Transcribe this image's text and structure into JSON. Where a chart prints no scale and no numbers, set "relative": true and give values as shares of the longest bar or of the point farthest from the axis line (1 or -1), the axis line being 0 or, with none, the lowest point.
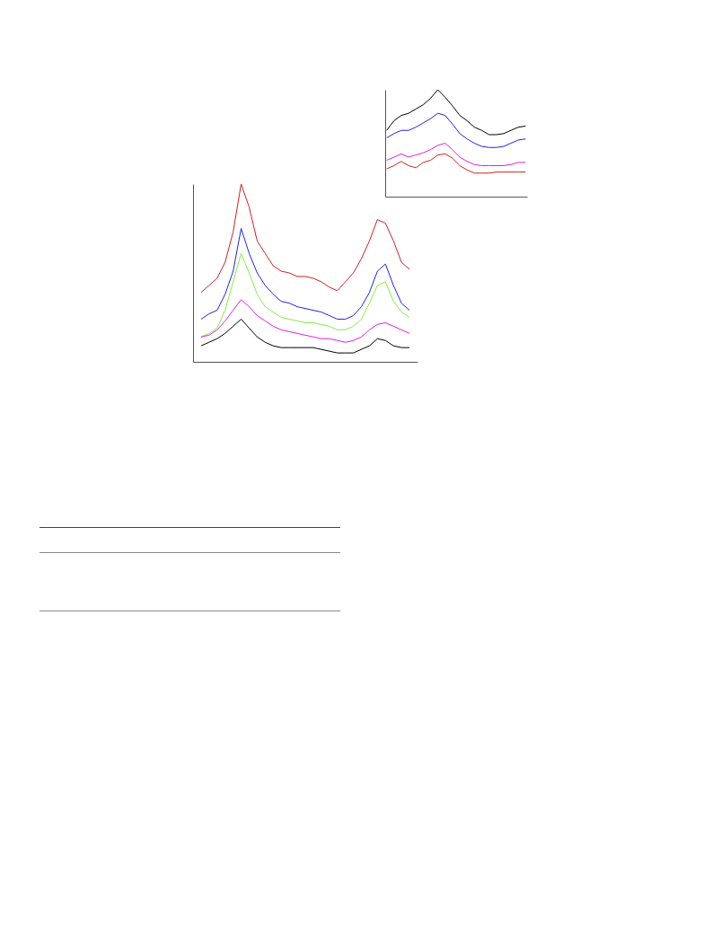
{
  "chart_data": [
    {
      "type": "line",
      "relative": true,
      "categories": [
        null,
        null,
        null,
        null,
        null,
        null,
        null,
        null,
        null,
        null,
        null,
        null,
        null,
        null,
        null,
        null,
        null,
        null,
        null,
        null,
        null,
        null,
        null,
        null,
        null,
        null,
        null
      ],
      "series": [
        {
          "color": "#d02020",
          "values": [
            0.39,
            0.43,
            0.47,
            0.56,
            0.73,
            1.0,
            0.87,
            0.68,
            0.61,
            0.54,
            0.51,
            0.5,
            0.48,
            0.48,
            0.47,
            0.45,
            0.42,
            0.4,
            0.45,
            0.5,
            0.58,
            0.68,
            0.8,
            0.78,
            0.68,
            0.56,
            0.52
          ]
        },
        {
          "color": "#2020f0",
          "values": [
            0.24,
            0.27,
            0.29,
            0.38,
            0.51,
            0.75,
            0.61,
            0.5,
            0.43,
            0.38,
            0.34,
            0.33,
            0.31,
            0.3,
            0.29,
            0.28,
            0.26,
            0.24,
            0.24,
            0.26,
            0.31,
            0.39,
            0.51,
            0.55,
            0.43,
            0.33,
            0.29
          ]
        },
        {
          "color": "#80f040",
          "values": [
            0.14,
            0.16,
            0.19,
            0.29,
            0.45,
            0.61,
            0.5,
            0.38,
            0.31,
            0.28,
            0.25,
            0.24,
            0.23,
            0.22,
            0.22,
            0.21,
            0.2,
            0.18,
            0.18,
            0.2,
            0.24,
            0.33,
            0.43,
            0.45,
            0.34,
            0.28,
            0.25
          ]
        },
        {
          "color": "#e020e0",
          "values": [
            0.14,
            0.15,
            0.18,
            0.23,
            0.29,
            0.35,
            0.31,
            0.26,
            0.23,
            0.2,
            0.18,
            0.17,
            0.16,
            0.15,
            0.14,
            0.13,
            0.13,
            0.12,
            0.11,
            0.12,
            0.14,
            0.18,
            0.21,
            0.22,
            0.2,
            0.18,
            0.16
          ]
        },
        {
          "color": "#000000",
          "values": [
            0.09,
            0.11,
            0.13,
            0.16,
            0.2,
            0.24,
            0.19,
            0.14,
            0.11,
            0.09,
            0.08,
            0.08,
            0.08,
            0.08,
            0.08,
            0.07,
            0.06,
            0.05,
            0.05,
            0.05,
            0.07,
            0.09,
            0.13,
            0.12,
            0.09,
            0.08,
            0.08
          ]
        }
      ]
    },
    {
      "type": "line",
      "relative": true,
      "categories": [
        null,
        null,
        null,
        null,
        null,
        null,
        null,
        null,
        null,
        null,
        null,
        null,
        null,
        null,
        null,
        null,
        null,
        null,
        null,
        null
      ],
      "series": [
        {
          "color": "#000000",
          "values": [
            0.62,
            0.71,
            0.76,
            0.78,
            0.82,
            0.86,
            0.92,
            1.0,
            0.93,
            0.85,
            0.76,
            0.71,
            0.65,
            0.62,
            0.58,
            0.58,
            0.59,
            0.62,
            0.65,
            0.66
          ]
        },
        {
          "color": "#2020f0",
          "values": [
            0.55,
            0.59,
            0.62,
            0.62,
            0.65,
            0.69,
            0.73,
            0.78,
            0.76,
            0.68,
            0.59,
            0.54,
            0.5,
            0.47,
            0.46,
            0.46,
            0.47,
            0.5,
            0.53,
            0.54
          ]
        },
        {
          "color": "#e020e0",
          "values": [
            0.34,
            0.37,
            0.4,
            0.37,
            0.39,
            0.41,
            0.44,
            0.48,
            0.5,
            0.44,
            0.37,
            0.33,
            0.3,
            0.29,
            0.29,
            0.29,
            0.29,
            0.3,
            0.32,
            0.32
          ]
        },
        {
          "color": "#d02020",
          "values": [
            0.26,
            0.29,
            0.33,
            0.29,
            0.27,
            0.32,
            0.34,
            0.39,
            0.4,
            0.36,
            0.29,
            0.25,
            0.22,
            0.22,
            0.22,
            0.23,
            0.23,
            0.23,
            0.23,
            0.23
          ]
        }
      ]
    }
  ]
}
